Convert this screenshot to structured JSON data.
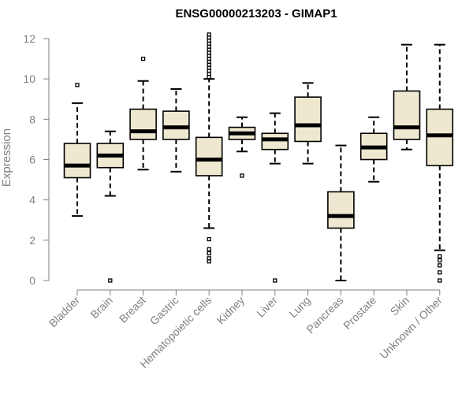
{
  "chart_data": {
    "type": "boxplot",
    "title": "ENSG00000213203 - GIMAP1",
    "xlabel": "",
    "ylabel": "Expression",
    "ylim": [
      0,
      12.2
    ],
    "yticks": [
      0,
      2,
      4,
      6,
      8,
      10,
      12
    ],
    "box_color": "#EFE8D0",
    "categories": [
      "Bladder",
      "Brain",
      "Breast",
      "Gastric",
      "Hematopoietic cells",
      "Kidney",
      "Liver",
      "Lung",
      "Pancreas",
      "Prostate",
      "Skin",
      "Unknown / Other"
    ],
    "boxes": [
      {
        "name": "Bladder",
        "whisker_low": 3.2,
        "q1": 5.1,
        "median": 5.7,
        "q3": 6.8,
        "whisker_high": 8.8,
        "outliers": [
          9.7
        ]
      },
      {
        "name": "Brain",
        "whisker_low": 4.2,
        "q1": 5.6,
        "median": 6.2,
        "q3": 6.8,
        "whisker_high": 7.4,
        "outliers": [
          0.0
        ]
      },
      {
        "name": "Breast",
        "whisker_low": 5.5,
        "q1": 7.0,
        "median": 7.4,
        "q3": 8.5,
        "whisker_high": 9.9,
        "outliers": [
          11.0
        ]
      },
      {
        "name": "Gastric",
        "whisker_low": 5.4,
        "q1": 7.0,
        "median": 7.6,
        "q3": 8.4,
        "whisker_high": 9.5,
        "outliers": []
      },
      {
        "name": "Hematopoietic cells",
        "whisker_low": 2.6,
        "q1": 5.2,
        "median": 6.0,
        "q3": 7.1,
        "whisker_high": 10.0,
        "outliers": [
          0.95,
          1.1,
          1.35,
          1.55,
          2.05,
          10.1,
          10.25,
          10.4,
          10.55,
          10.7,
          10.85,
          11.0,
          11.15,
          11.3,
          11.45,
          11.6,
          11.75,
          11.9,
          12.05,
          12.2
        ]
      },
      {
        "name": "Kidney",
        "whisker_low": 6.4,
        "q1": 7.0,
        "median": 7.3,
        "q3": 7.6,
        "whisker_high": 8.1,
        "outliers": [
          5.2
        ]
      },
      {
        "name": "Liver",
        "whisker_low": 5.8,
        "q1": 6.5,
        "median": 7.0,
        "q3": 7.3,
        "whisker_high": 8.3,
        "outliers": [
          0.0
        ]
      },
      {
        "name": "Lung",
        "whisker_low": 5.8,
        "q1": 6.9,
        "median": 7.7,
        "q3": 9.1,
        "whisker_high": 9.8,
        "outliers": []
      },
      {
        "name": "Pancreas",
        "whisker_low": 0.0,
        "q1": 2.6,
        "median": 3.2,
        "q3": 4.4,
        "whisker_high": 6.7,
        "outliers": []
      },
      {
        "name": "Prostate",
        "whisker_low": 4.9,
        "q1": 6.0,
        "median": 6.6,
        "q3": 7.3,
        "whisker_high": 8.1,
        "outliers": []
      },
      {
        "name": "Skin",
        "whisker_low": 6.5,
        "q1": 7.0,
        "median": 7.6,
        "q3": 9.4,
        "whisker_high": 11.7,
        "outliers": []
      },
      {
        "name": "Unknown / Other",
        "whisker_low": 1.5,
        "q1": 5.7,
        "median": 7.2,
        "q3": 8.5,
        "whisker_high": 11.7,
        "outliers": [
          0.0,
          0.4,
          0.75,
          1.0,
          1.2
        ]
      }
    ]
  }
}
